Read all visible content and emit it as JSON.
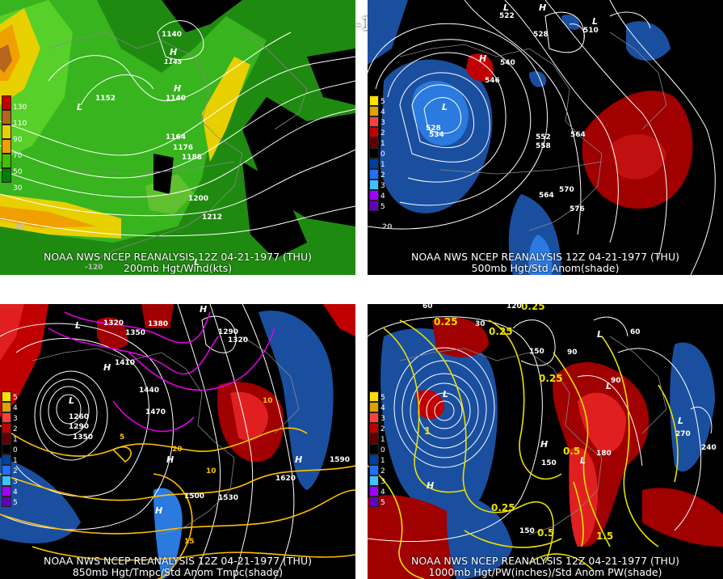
{
  "title": "12Z 04-21-1977 (THU)",
  "panels": [
    {
      "id": "p1",
      "caption1": "NOAA NWS NCEP REANALYSIS 12Z 04-21-1977 (THU)",
      "caption2": "200mb Hgt/Wind(kts)",
      "scale": [
        "130",
        "110",
        "90",
        "70",
        "50",
        "30"
      ],
      "labels": [
        "1140",
        "1145",
        "1152",
        "1140",
        "1164",
        "1176",
        "1188",
        "1200",
        "1212",
        "20",
        "-120"
      ],
      "highs_lows": [
        "L",
        "H",
        "H",
        "L"
      ]
    },
    {
      "id": "p2",
      "caption1": "NOAA NWS NCEP REANALYSIS 12Z 04-21-1977 (THU)",
      "caption2": "500mb Hgt/Std Anom(shade)",
      "scale": [
        "5",
        "4",
        "3",
        "2",
        "1",
        "0",
        "1",
        "2",
        "3",
        "4",
        "5"
      ],
      "labels": [
        "522",
        "510",
        "528",
        "540",
        "546",
        "552",
        "558",
        "564",
        "570",
        "576",
        "564",
        "534",
        "528",
        "20"
      ],
      "highs_lows": [
        "L",
        "H",
        "H",
        "L",
        "L"
      ]
    },
    {
      "id": "p3",
      "caption1": "NOAA NWS NCEP REANALYSIS 12Z 04-21-1977 (THU)",
      "caption2": "850mb Hgt/Tmpc/Std Anom Tmpc(shade)",
      "scale": [
        "5",
        "4",
        "3",
        "2",
        "1",
        "0",
        "1",
        "2",
        "3",
        "4",
        "5"
      ],
      "labels": [
        "1320",
        "1350",
        "1380",
        "1290",
        "1320",
        "1410",
        "1440",
        "1470",
        "1260",
        "1290",
        "1350",
        "1500",
        "1530",
        "1590",
        "1620",
        "10",
        "15",
        "5",
        "20",
        "10"
      ],
      "highs_lows": [
        "L",
        "H",
        "H",
        "L",
        "H",
        "H",
        "H"
      ]
    },
    {
      "id": "p4",
      "caption1": "NOAA NWS NCEP REANALYSIS 12Z 04-21-1977 (THU)",
      "caption2": "1000mb Hgt/PW(inches)/Std Anom PW(shade)",
      "scale": [
        "5",
        "4",
        "3",
        "2",
        "1",
        "0",
        "1",
        "2",
        "3",
        "4",
        "5"
      ],
      "labels": [
        "120",
        "0.25",
        "30",
        "0.25",
        "60",
        "0.25",
        "150",
        "90",
        "90",
        "60",
        "0.25",
        "270",
        "240",
        "150",
        "180",
        "150",
        "0.25",
        "0.5",
        "1.5",
        "0.5",
        "1"
      ],
      "highs_lows": [
        "L",
        "L",
        "H",
        "L",
        "L",
        "L",
        "H"
      ]
    }
  ],
  "scale_colors_wind": [
    "#c00000",
    "#b5651d",
    "#e8d000",
    "#f0a000",
    "#40c000",
    "#008000"
  ],
  "scale_colors_anom": [
    "#ffe000",
    "#e0a000",
    "#ff4040",
    "#c00000",
    "#600000",
    "#000000",
    "#0040a0",
    "#2070ff",
    "#40c0ff",
    "#a000ff",
    "#6000c0"
  ]
}
